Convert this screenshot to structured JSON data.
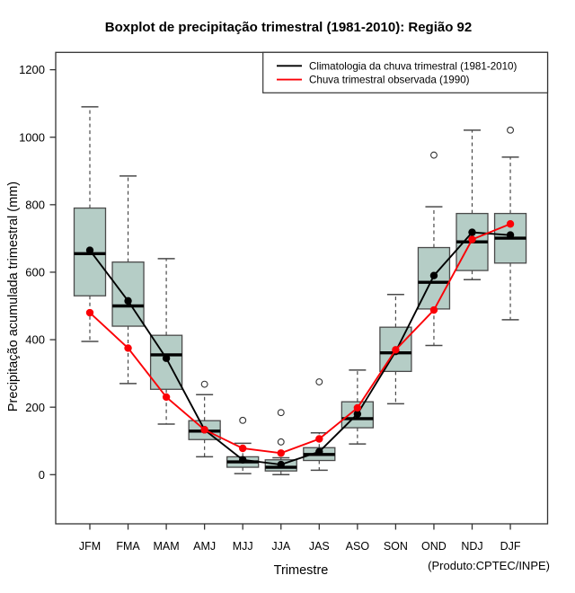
{
  "chart_data": {
    "type": "boxplot",
    "title": "Boxplot de precipitação trimestral (1981-2010): Região 92",
    "xlabel": "Trimestre",
    "ylabel": "Precipitação acumulada trimestral (mm)",
    "note": "(Produto:CPTEC/INPE)",
    "categories": [
      "JFM",
      "FMA",
      "MAM",
      "AMJ",
      "MJJ",
      "JJA",
      "JAS",
      "ASO",
      "SON",
      "OND",
      "NDJ",
      "DJF"
    ],
    "y_ticks": [
      0,
      200,
      400,
      600,
      800,
      1000,
      1200
    ],
    "ylim": [
      0,
      1200
    ],
    "grid": false,
    "legend_position": "top-right",
    "boxes": [
      {
        "category": "JFM",
        "whisker_low": 395,
        "q1": 530,
        "median": 655,
        "q3": 790,
        "whisker_high": 1090,
        "outliers": []
      },
      {
        "category": "FMA",
        "whisker_low": 270,
        "q1": 440,
        "median": 500,
        "q3": 630,
        "whisker_high": 885,
        "outliers": []
      },
      {
        "category": "MAM",
        "whisker_low": 150,
        "q1": 253,
        "median": 355,
        "q3": 413,
        "whisker_high": 640,
        "outliers": []
      },
      {
        "category": "AMJ",
        "whisker_low": 53,
        "q1": 104,
        "median": 129,
        "q3": 160,
        "whisker_high": 237,
        "outliers": [
          268
        ]
      },
      {
        "category": "MJJ",
        "whisker_low": 3,
        "q1": 22,
        "median": 38,
        "q3": 53,
        "whisker_high": 93,
        "outliers": [
          161
        ]
      },
      {
        "category": "JJA",
        "whisker_low": 0,
        "q1": 11,
        "median": 22,
        "q3": 44,
        "whisker_high": 50,
        "outliers": [
          97,
          184
        ]
      },
      {
        "category": "JAS",
        "whisker_low": 13,
        "q1": 42,
        "median": 60,
        "q3": 80,
        "whisker_high": 124,
        "outliers": [
          275
        ]
      },
      {
        "category": "ASO",
        "whisker_low": 91,
        "q1": 139,
        "median": 166,
        "q3": 216,
        "whisker_high": 310,
        "outliers": []
      },
      {
        "category": "SON",
        "whisker_low": 210,
        "q1": 306,
        "median": 361,
        "q3": 437,
        "whisker_high": 534,
        "outliers": []
      },
      {
        "category": "OND",
        "whisker_low": 383,
        "q1": 491,
        "median": 570,
        "q3": 673,
        "whisker_high": 794,
        "outliers": [
          947
        ]
      },
      {
        "category": "NDJ",
        "whisker_low": 578,
        "q1": 605,
        "median": 690,
        "q3": 774,
        "whisker_high": 1021,
        "outliers": []
      },
      {
        "category": "DJF",
        "whisker_low": 459,
        "q1": 627,
        "median": 701,
        "q3": 774,
        "whisker_high": 941,
        "outliers": [
          1021
        ]
      }
    ],
    "series": [
      {
        "name": "Climatologia da chuva trimestral (1981-2010)",
        "color": "#000000",
        "marker": "filled-circle",
        "values": [
          665,
          515,
          345,
          133,
          44,
          30,
          68,
          180,
          365,
          590,
          718,
          710
        ]
      },
      {
        "name": "Chuva trimestral observada (1990)",
        "color": "#fb0006",
        "marker": "filled-circle",
        "values": [
          480,
          375,
          230,
          133,
          78,
          64,
          106,
          198,
          370,
          488,
          697,
          743
        ]
      }
    ],
    "colors": {
      "box_fill": "#b5cdc6",
      "box_border": "#4a4a4a",
      "median": "#000000",
      "whisker": "#4a4a4a",
      "outlier": "#333333",
      "frame": "#333333",
      "legend_border": "#333333",
      "background": "#ffffff"
    }
  }
}
